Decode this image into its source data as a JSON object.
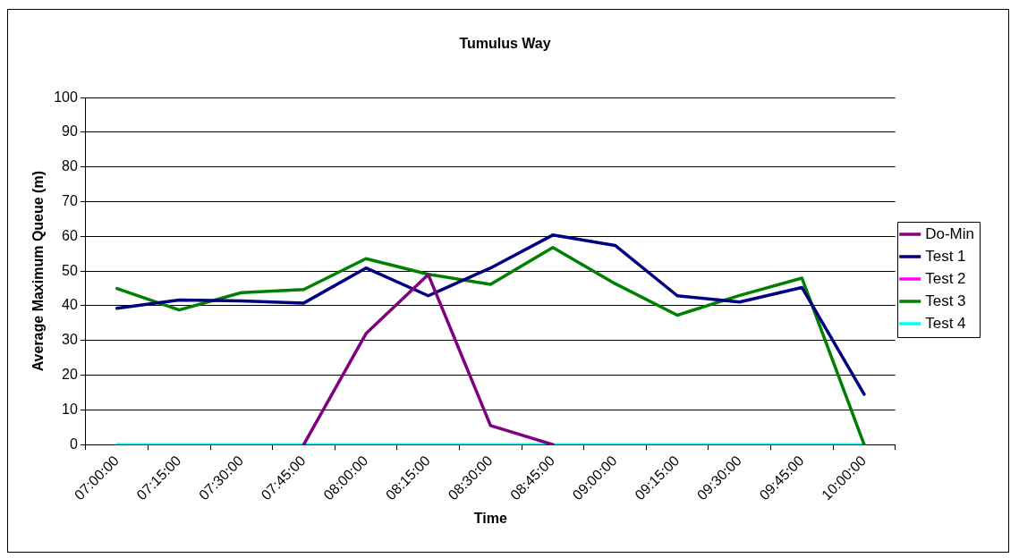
{
  "chart_data": {
    "type": "line",
    "title": "Tumulus Way",
    "xlabel": "Time",
    "ylabel": "Average Maximum Queue (m)",
    "categories": [
      "07:00:00",
      "07:15:00",
      "07:30:00",
      "07:45:00",
      "08:00:00",
      "08:15:00",
      "08:30:00",
      "08:45:00",
      "09:00:00",
      "09:15:00",
      "09:30:00",
      "09:45:00",
      "10:00:00"
    ],
    "series": [
      {
        "name": "Do-Min",
        "color": "#800080",
        "values": [
          null,
          null,
          null,
          0,
          32,
          49,
          5.5,
          0,
          null,
          null,
          null,
          null,
          null
        ]
      },
      {
        "name": "Test 1",
        "color": "#000080",
        "values": [
          39.3,
          41.7,
          41.4,
          40.8,
          50.9,
          42.9,
          50.9,
          60.4,
          57.4,
          42.9,
          41.1,
          45.3,
          14.5
        ]
      },
      {
        "name": "Test 2",
        "color": "#ff00ff",
        "values": [
          null,
          null,
          null,
          null,
          null,
          null,
          null,
          null,
          null,
          null,
          null,
          null,
          null
        ]
      },
      {
        "name": "Test 3",
        "color": "#008000",
        "values": [
          45,
          38.8,
          43.8,
          44.7,
          53.6,
          49.1,
          46.2,
          56.8,
          46.4,
          37.3,
          43,
          48,
          0
        ]
      },
      {
        "name": "Test 4",
        "color": "#00ffff",
        "values": [
          0,
          0,
          0,
          0,
          0,
          0,
          0,
          0,
          0,
          0,
          0,
          0,
          0
        ]
      }
    ],
    "ylim": [
      0,
      100
    ],
    "yticks": [
      0,
      10,
      20,
      30,
      40,
      50,
      60,
      70,
      80,
      90,
      100
    ],
    "grid": "y",
    "legend": "right",
    "marker": "none",
    "line_style": "solid"
  }
}
